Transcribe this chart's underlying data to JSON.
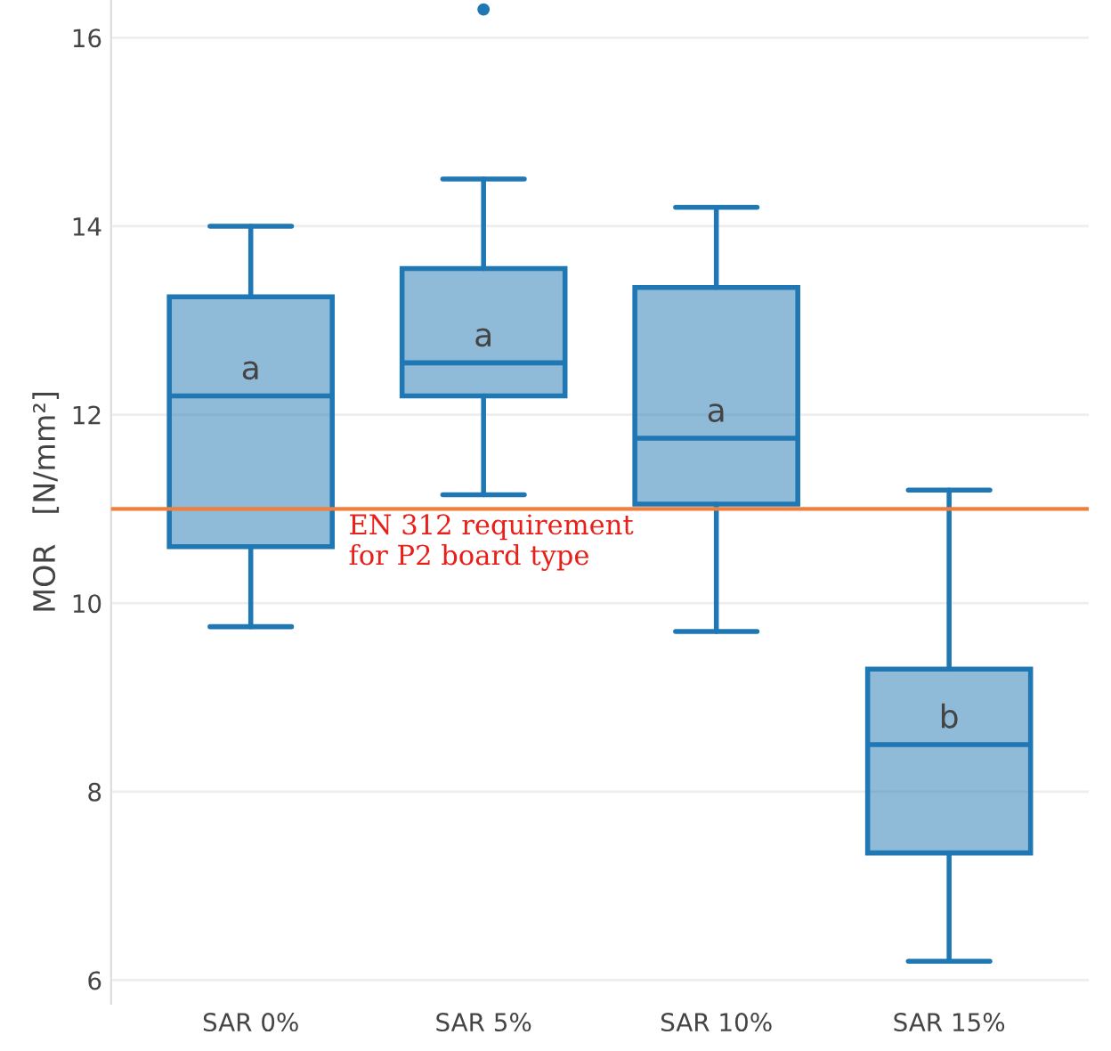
{
  "chart_data": {
    "type": "box",
    "ylabel": "MOR   [N/mm²]",
    "categories": [
      "SAR 0%",
      "SAR 5%",
      "SAR 10%",
      "SAR 15%"
    ],
    "color": "#1f77b4",
    "boxes": [
      {
        "low": 9.75,
        "q1": 10.6,
        "median": 12.2,
        "q3": 13.25,
        "high": 14.0
      },
      {
        "low": 11.15,
        "q1": 12.2,
        "median": 12.55,
        "q3": 13.55,
        "high": 14.5,
        "outliers": [
          16.3
        ]
      },
      {
        "low": 9.7,
        "q1": 11.05,
        "median": 11.75,
        "q3": 13.35,
        "high": 14.2
      },
      {
        "low": 6.2,
        "q1": 7.35,
        "median": 8.5,
        "q3": 9.3,
        "high": 11.2
      }
    ],
    "ylim": [
      5.75,
      16.4
    ],
    "yticks": [
      6,
      8,
      10,
      12,
      14,
      16
    ],
    "grid": "y",
    "ref_lines": [
      {
        "axis": "y",
        "value": 11.0,
        "label": "EN 312 requirement\nfor P2 board type",
        "color": "#f07f3c"
      }
    ],
    "annotations": [
      "a",
      "a",
      "a",
      "b"
    ]
  }
}
